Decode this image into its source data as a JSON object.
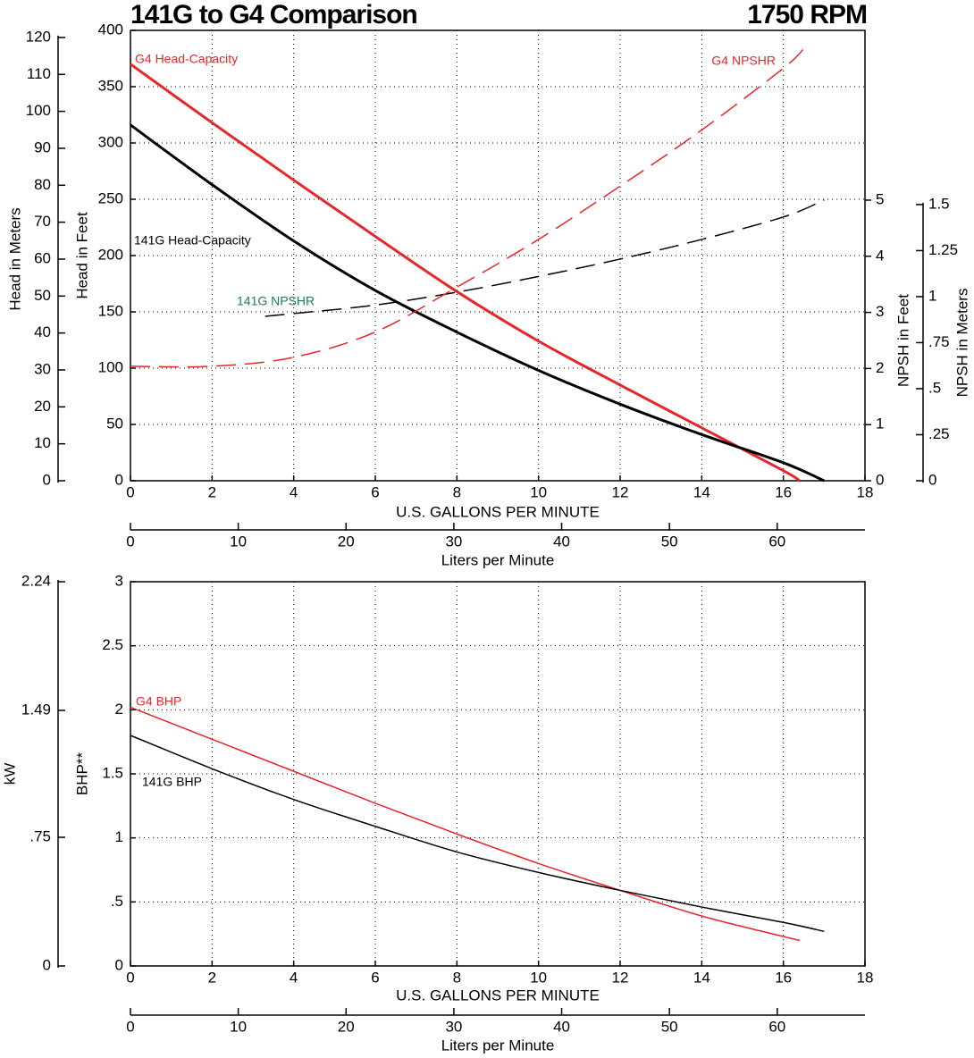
{
  "chart_data": [
    {
      "type": "line",
      "title": "141G to G4 Comparison",
      "subtitle": "1750 RPM",
      "xlabel": "U.S. GALLONS PER MINUTE",
      "ylabel": "Head in Feet",
      "y2label": "NPSH in Feet",
      "xlim": [
        0,
        18
      ],
      "xticks": [
        0,
        2,
        4,
        6,
        8,
        10,
        12,
        14,
        16,
        18
      ],
      "ylim": [
        0,
        400
      ],
      "yticks": [
        0,
        50,
        100,
        150,
        200,
        250,
        300,
        350,
        400
      ],
      "y2lim": [
        0,
        8.025
      ],
      "y2ticks": [
        0,
        1,
        2,
        3,
        4,
        5
      ],
      "grid": true,
      "extra_axes": [
        {
          "position": "left",
          "label": "Head in Meters",
          "lim": [
            0,
            121.92
          ],
          "ticks": [
            0,
            10,
            20,
            30,
            40,
            50,
            60,
            70,
            80,
            90,
            100,
            110,
            120
          ]
        },
        {
          "position": "right",
          "label": "NPSH in Meters",
          "lim": [
            0,
            2.446
          ],
          "ticks": [
            0,
            {
              "value": 0.25,
              "label": ".25"
            },
            {
              "value": 0.5,
              "label": ".5"
            },
            {
              "value": 0.75,
              "label": ".75"
            },
            1,
            1.25,
            1.5
          ]
        },
        {
          "position": "bottom",
          "label": "Liters per Minute",
          "lim": [
            0,
            68.14
          ],
          "ticks": [
            0,
            10,
            20,
            30,
            40,
            50,
            60
          ]
        }
      ],
      "series": [
        {
          "name": "G4 Head-Capacity",
          "color": "#e8262a",
          "style": "solid",
          "x": [
            0,
            2,
            4,
            6,
            8,
            10,
            12,
            14,
            16,
            16.4
          ],
          "values": [
            370,
            318,
            267,
            217,
            168,
            124,
            85,
            47,
            9,
            0
          ]
        },
        {
          "name": "141G Head-Capacity",
          "color": "#000000",
          "style": "solid",
          "x": [
            0,
            2,
            4,
            6,
            8,
            10,
            12,
            14,
            16,
            17
          ],
          "values": [
            316,
            263,
            213,
            169,
            132,
            98,
            68,
            41,
            16,
            0
          ]
        },
        {
          "name": "141G NPSHR",
          "color": "#000000",
          "style": "dashed",
          "axis": "y2",
          "x": [
            3.3,
            4,
            6,
            8,
            10,
            12,
            14,
            16,
            17
          ],
          "values": [
            2.93,
            2.98,
            3.13,
            3.36,
            3.64,
            3.95,
            4.3,
            4.7,
            5.0
          ]
        },
        {
          "name": "G4 NPSHR",
          "color": "#e8262a",
          "style": "dashed",
          "axis": "y2",
          "x": [
            0,
            2,
            4,
            6,
            8,
            10,
            12,
            14,
            16,
            16.5
          ],
          "values": [
            2.04,
            2.04,
            2.2,
            2.65,
            3.45,
            4.3,
            5.25,
            6.25,
            7.35,
            7.7
          ]
        }
      ],
      "annotations": [
        {
          "text": "G4 Head-Capacity",
          "color": "#e8262a"
        },
        {
          "text": "141G Head-Capacity",
          "color": "#000000"
        },
        {
          "text": "141G NPSHR",
          "color": "#1f7a5c"
        },
        {
          "text": "G4 NPSHR",
          "color": "#e8262a"
        }
      ]
    },
    {
      "type": "line",
      "xlabel": "U.S. GALLONS PER MINUTE",
      "ylabel": "BHP**",
      "xlim": [
        0,
        18
      ],
      "xticks": [
        0,
        2,
        4,
        6,
        8,
        10,
        12,
        14,
        16,
        18
      ],
      "ylim": [
        0,
        3
      ],
      "yticks": [
        0,
        {
          "value": 0.5,
          "label": ".5"
        },
        1,
        1.5,
        2,
        2.5,
        3
      ],
      "grid": true,
      "extra_axes": [
        {
          "position": "left",
          "label": "kW",
          "lim": [
            0,
            2.24
          ],
          "ticks": [
            0,
            {
              "value": 0.75,
              "label": ".75"
            },
            1.49,
            2.24
          ]
        },
        {
          "position": "bottom",
          "label": "Liters per Minute",
          "lim": [
            0,
            68.14
          ],
          "ticks": [
            0,
            10,
            20,
            30,
            40,
            50,
            60
          ]
        }
      ],
      "series": [
        {
          "name": "G4 BHP",
          "color": "#e8262a",
          "style": "solid",
          "x": [
            0,
            2,
            4,
            6,
            8,
            10,
            12,
            14,
            16,
            16.4
          ],
          "values": [
            2.02,
            1.77,
            1.52,
            1.27,
            1.03,
            0.8,
            0.59,
            0.39,
            0.23,
            0.2
          ]
        },
        {
          "name": "141G BHP",
          "color": "#000000",
          "style": "solid",
          "x": [
            0,
            2,
            4,
            6,
            8,
            10,
            12,
            14,
            16,
            17
          ],
          "values": [
            1.8,
            1.54,
            1.3,
            1.09,
            0.89,
            0.73,
            0.59,
            0.46,
            0.34,
            0.27
          ]
        }
      ],
      "annotations": [
        {
          "text": "G4 BHP",
          "color": "#e8262a"
        },
        {
          "text": "141G BHP",
          "color": "#000000"
        }
      ]
    }
  ]
}
